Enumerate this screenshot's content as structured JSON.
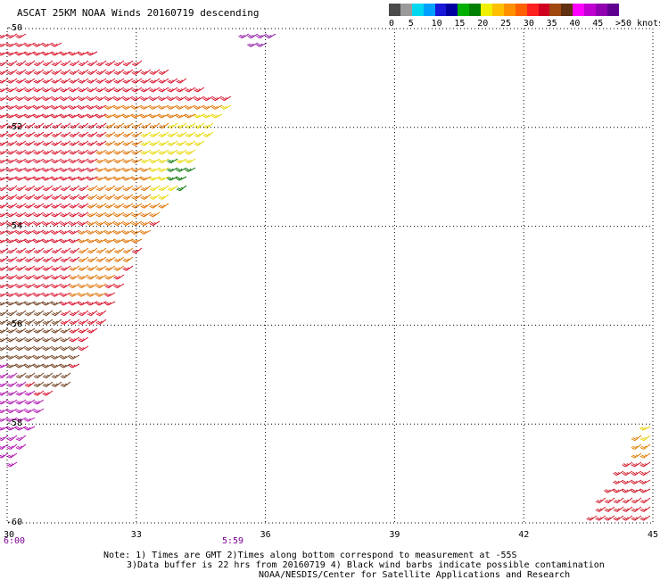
{
  "title": "ASCAT 25KM NOAA Winds 20160719 descending",
  "legend": {
    "labels": [
      "0",
      "5",
      "10",
      "15",
      "20",
      "25",
      "30",
      "35",
      "40",
      "45",
      ">50 knots"
    ],
    "colors": [
      "#4a4a4a",
      "#9a9a9a",
      "#00d8f0",
      "#00a0ff",
      "#1818d8",
      "#0000a0",
      "#00b000",
      "#008000",
      "#f0f000",
      "#ffc000",
      "#ff9000",
      "#ff6000",
      "#ff2020",
      "#d00020",
      "#a04810",
      "#603010",
      "#ff00ff",
      "#c000d0",
      "#9000b0",
      "#600090"
    ]
  },
  "map": {
    "lat_labels": [
      "-50",
      "-52",
      "-54",
      "-56",
      "-58",
      "-60"
    ],
    "lon_labels": [
      "30",
      "33",
      "36",
      "39",
      "42",
      "45"
    ],
    "lat_range": [
      -60,
      -50
    ],
    "lon_range": [
      30,
      45
    ],
    "time_labels": [
      {
        "lon": 30,
        "text": "6:00"
      },
      {
        "lon": 35.2,
        "text": "5:59"
      }
    ],
    "swath_regions": [
      {
        "name": "west-swath-red",
        "color": "#d8102a",
        "poly": [
          [
            30,
            -50
          ],
          [
            33.4,
            -50.7
          ],
          [
            35.3,
            -51.4
          ],
          [
            33.5,
            -54
          ],
          [
            31.6,
            -57
          ],
          [
            30,
            -58
          ]
        ]
      },
      {
        "name": "west-swath-orange",
        "color": "#e07000",
        "poly": [
          [
            32.5,
            -51.5
          ],
          [
            35.3,
            -51.4
          ],
          [
            33.2,
            -54.3
          ],
          [
            32.3,
            -55.4
          ],
          [
            31.5,
            -55.5
          ]
        ]
      },
      {
        "name": "west-swath-yellow",
        "color": "#e8d800",
        "poly": [
          [
            33.2,
            -52.1
          ],
          [
            35.3,
            -51.5
          ],
          [
            34.0,
            -53.2
          ],
          [
            33.6,
            -53.7
          ]
        ]
      },
      {
        "name": "west-swath-green",
        "color": "#007000",
        "poly": [
          [
            33.9,
            -52.6
          ],
          [
            34.4,
            -52.8
          ],
          [
            34.2,
            -53.2
          ],
          [
            33.9,
            -53.1
          ]
        ]
      },
      {
        "name": "west-swath-brown",
        "color": "#704020",
        "poly": [
          [
            30,
            -55.5
          ],
          [
            31.2,
            -55.4
          ],
          [
            31.8,
            -56.5
          ],
          [
            31.4,
            -57.3
          ],
          [
            30,
            -57.0
          ]
        ]
      },
      {
        "name": "west-swath-magenta",
        "color": "#b010b0",
        "poly": [
          [
            30,
            -56.6
          ],
          [
            31.0,
            -57.5
          ],
          [
            30.3,
            -58.8
          ],
          [
            30,
            -58.7
          ]
        ]
      },
      {
        "name": "north-patch-purple",
        "color": "#8a10a0",
        "poly": [
          [
            35.3,
            -49.95
          ],
          [
            36.6,
            -49.95
          ],
          [
            36.1,
            -50.4
          ],
          [
            35.9,
            -50.4
          ]
        ]
      },
      {
        "name": "east-swath-red",
        "color": "#d01828",
        "poly": [
          [
            45,
            -58.3
          ],
          [
            45,
            -60
          ],
          [
            43.6,
            -59.9
          ],
          [
            44.6,
            -58.5
          ]
        ]
      },
      {
        "name": "east-swath-orange",
        "color": "#e08000",
        "poly": [
          [
            44.7,
            -58.2
          ],
          [
            45,
            -58.2
          ],
          [
            45,
            -58.7
          ],
          [
            44.6,
            -58.8
          ]
        ]
      },
      {
        "name": "east-swath-yellow",
        "color": "#e8d000",
        "poly": [
          [
            44.9,
            -58.0
          ],
          [
            45,
            -57.9
          ],
          [
            45,
            -58.2
          ],
          [
            44.8,
            -58.3
          ]
        ]
      }
    ]
  },
  "notes": [
    "Note: 1) Times are GMT 2)Times along bottom correspond to measurement at -55S",
    "3)Data buffer is 22 hrs from 20160719 4) Black wind barbs indicate possible contamination",
    "NOAA/NESDIS/Center for Satellite Applications and Research"
  ]
}
